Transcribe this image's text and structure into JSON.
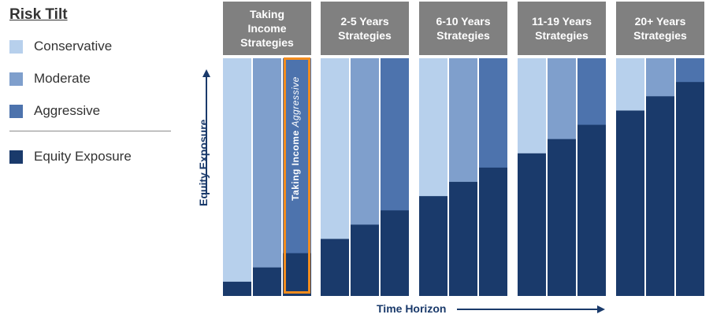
{
  "legend": {
    "title": "Risk Tilt",
    "items": [
      {
        "label": "Conservative",
        "color": "#b7d0ec"
      },
      {
        "label": "Moderate",
        "color": "#7f9fcc"
      },
      {
        "label": "Aggressive",
        "color": "#4d73ad"
      },
      {
        "label": "Equity Exposure",
        "color": "#1a3a6b"
      }
    ]
  },
  "callout": {
    "text_prefix": "Taking Income",
    "text_emphasis": "Aggressive",
    "border_color": "#f28c1e"
  },
  "chart_data": {
    "type": "bar",
    "title": "",
    "xlabel": "Time Horizon",
    "ylabel": "Equity Exposure",
    "ylim": [
      0,
      100
    ],
    "groups": [
      {
        "name_lines": [
          "Taking",
          "Income",
          "Strategies"
        ],
        "bars": [
          {
            "risk_tilt": "Conservative",
            "equity_exposure": 6
          },
          {
            "risk_tilt": "Moderate",
            "equity_exposure": 12
          },
          {
            "risk_tilt": "Aggressive",
            "equity_exposure": 18
          }
        ]
      },
      {
        "name_lines": [
          "2-5 Years",
          "Strategies"
        ],
        "bars": [
          {
            "risk_tilt": "Conservative",
            "equity_exposure": 24
          },
          {
            "risk_tilt": "Moderate",
            "equity_exposure": 30
          },
          {
            "risk_tilt": "Aggressive",
            "equity_exposure": 36
          }
        ]
      },
      {
        "name_lines": [
          "6-10 Years",
          "Strategies"
        ],
        "bars": [
          {
            "risk_tilt": "Conservative",
            "equity_exposure": 42
          },
          {
            "risk_tilt": "Moderate",
            "equity_exposure": 48
          },
          {
            "risk_tilt": "Aggressive",
            "equity_exposure": 54
          }
        ]
      },
      {
        "name_lines": [
          "11-19 Years",
          "Strategies"
        ],
        "bars": [
          {
            "risk_tilt": "Conservative",
            "equity_exposure": 60
          },
          {
            "risk_tilt": "Moderate",
            "equity_exposure": 66
          },
          {
            "risk_tilt": "Aggressive",
            "equity_exposure": 72
          }
        ]
      },
      {
        "name_lines": [
          "20+ Years",
          "Strategies"
        ],
        "bars": [
          {
            "risk_tilt": "Conservative",
            "equity_exposure": 78
          },
          {
            "risk_tilt": "Moderate",
            "equity_exposure": 84
          },
          {
            "risk_tilt": "Aggressive",
            "equity_exposure": 90
          }
        ]
      }
    ],
    "colors": {
      "Conservative": "#b7d0ec",
      "Moderate": "#7f9fcc",
      "Aggressive": "#4d73ad",
      "Equity Exposure": "#1a3a6b",
      "header": "#808080",
      "axis": "#1a3a6b"
    },
    "grid": false,
    "legend_position": "left"
  }
}
